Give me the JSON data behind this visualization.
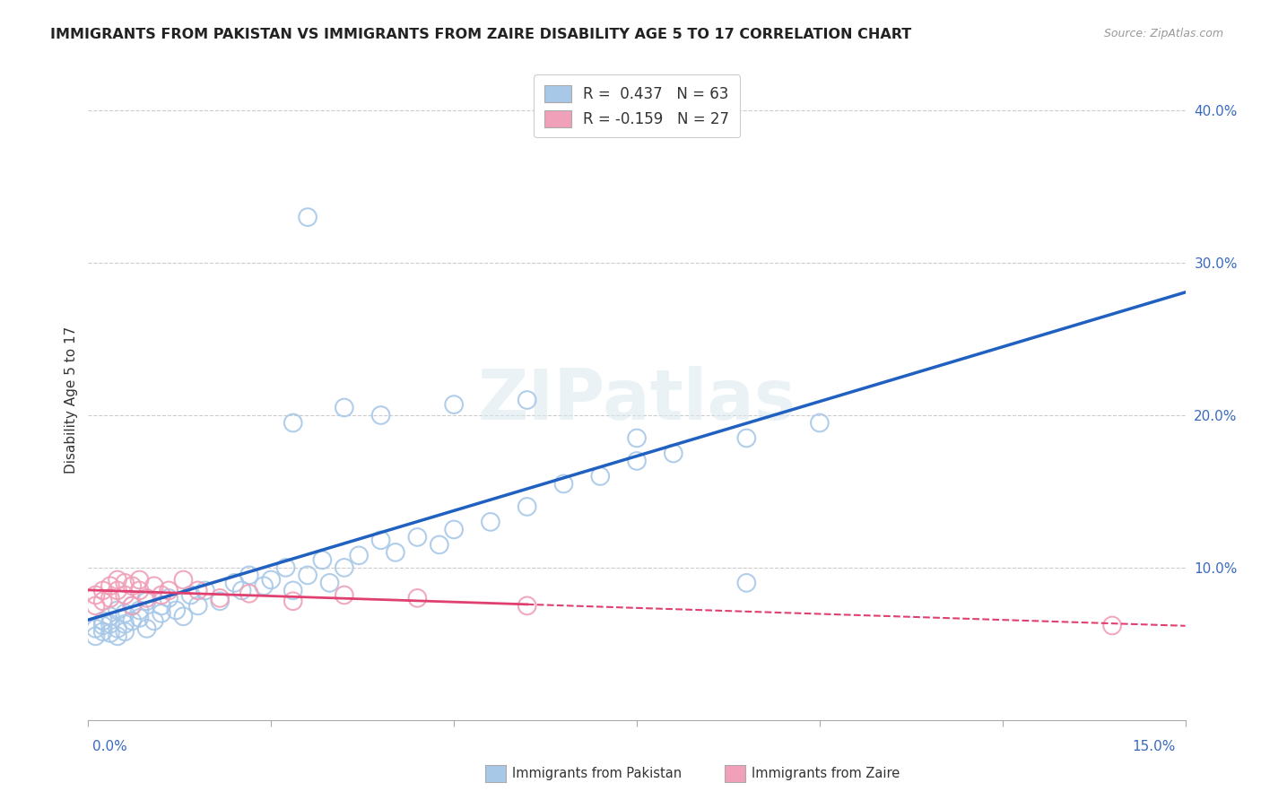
{
  "title": "IMMIGRANTS FROM PAKISTAN VS IMMIGRANTS FROM ZAIRE DISABILITY AGE 5 TO 17 CORRELATION CHART",
  "source": "Source: ZipAtlas.com",
  "ylabel": "Disability Age 5 to 17",
  "xlim": [
    0.0,
    0.15
  ],
  "ylim": [
    0.0,
    0.42
  ],
  "legend_entry1": "R =  0.437   N = 63",
  "legend_entry2": "R = -0.159   N = 27",
  "color_pakistan": "#a8c8e8",
  "color_zaire": "#f0a0b8",
  "trend_color_pakistan": "#2060c0",
  "trend_color_zaire": "#e04070",
  "watermark_text": "ZIPatlas",
  "background_color": "#ffffff",
  "grid_color": "#cccccc",
  "pakistan_x": [
    0.001,
    0.001,
    0.002,
    0.002,
    0.002,
    0.003,
    0.003,
    0.003,
    0.004,
    0.004,
    0.004,
    0.005,
    0.005,
    0.005,
    0.006,
    0.006,
    0.007,
    0.007,
    0.008,
    0.008,
    0.009,
    0.01,
    0.01,
    0.011,
    0.012,
    0.013,
    0.014,
    0.015,
    0.016,
    0.018,
    0.02,
    0.021,
    0.022,
    0.024,
    0.025,
    0.027,
    0.028,
    0.03,
    0.032,
    0.033,
    0.035,
    0.037,
    0.04,
    0.042,
    0.045,
    0.048,
    0.05,
    0.055,
    0.06,
    0.065,
    0.07,
    0.075,
    0.08,
    0.09,
    0.1,
    0.028,
    0.035,
    0.04,
    0.05,
    0.06,
    0.075,
    0.09,
    0.03
  ],
  "pakistan_y": [
    0.06,
    0.055,
    0.065,
    0.058,
    0.062,
    0.068,
    0.057,
    0.063,
    0.072,
    0.06,
    0.055,
    0.07,
    0.063,
    0.058,
    0.075,
    0.065,
    0.072,
    0.067,
    0.078,
    0.06,
    0.065,
    0.075,
    0.07,
    0.08,
    0.072,
    0.068,
    0.082,
    0.075,
    0.085,
    0.078,
    0.09,
    0.085,
    0.095,
    0.088,
    0.092,
    0.1,
    0.085,
    0.095,
    0.105,
    0.09,
    0.1,
    0.108,
    0.118,
    0.11,
    0.12,
    0.115,
    0.125,
    0.13,
    0.14,
    0.155,
    0.16,
    0.17,
    0.175,
    0.185,
    0.195,
    0.195,
    0.205,
    0.2,
    0.207,
    0.21,
    0.185,
    0.09,
    0.33
  ],
  "zaire_x": [
    0.001,
    0.001,
    0.002,
    0.002,
    0.003,
    0.003,
    0.004,
    0.004,
    0.005,
    0.005,
    0.006,
    0.006,
    0.007,
    0.007,
    0.008,
    0.009,
    0.01,
    0.011,
    0.013,
    0.015,
    0.018,
    0.022,
    0.028,
    0.035,
    0.045,
    0.06,
    0.14
  ],
  "zaire_y": [
    0.082,
    0.075,
    0.085,
    0.078,
    0.088,
    0.08,
    0.092,
    0.085,
    0.09,
    0.082,
    0.088,
    0.075,
    0.085,
    0.092,
    0.08,
    0.088,
    0.082,
    0.085,
    0.092,
    0.085,
    0.08,
    0.083,
    0.078,
    0.082,
    0.08,
    0.075,
    0.062
  ]
}
